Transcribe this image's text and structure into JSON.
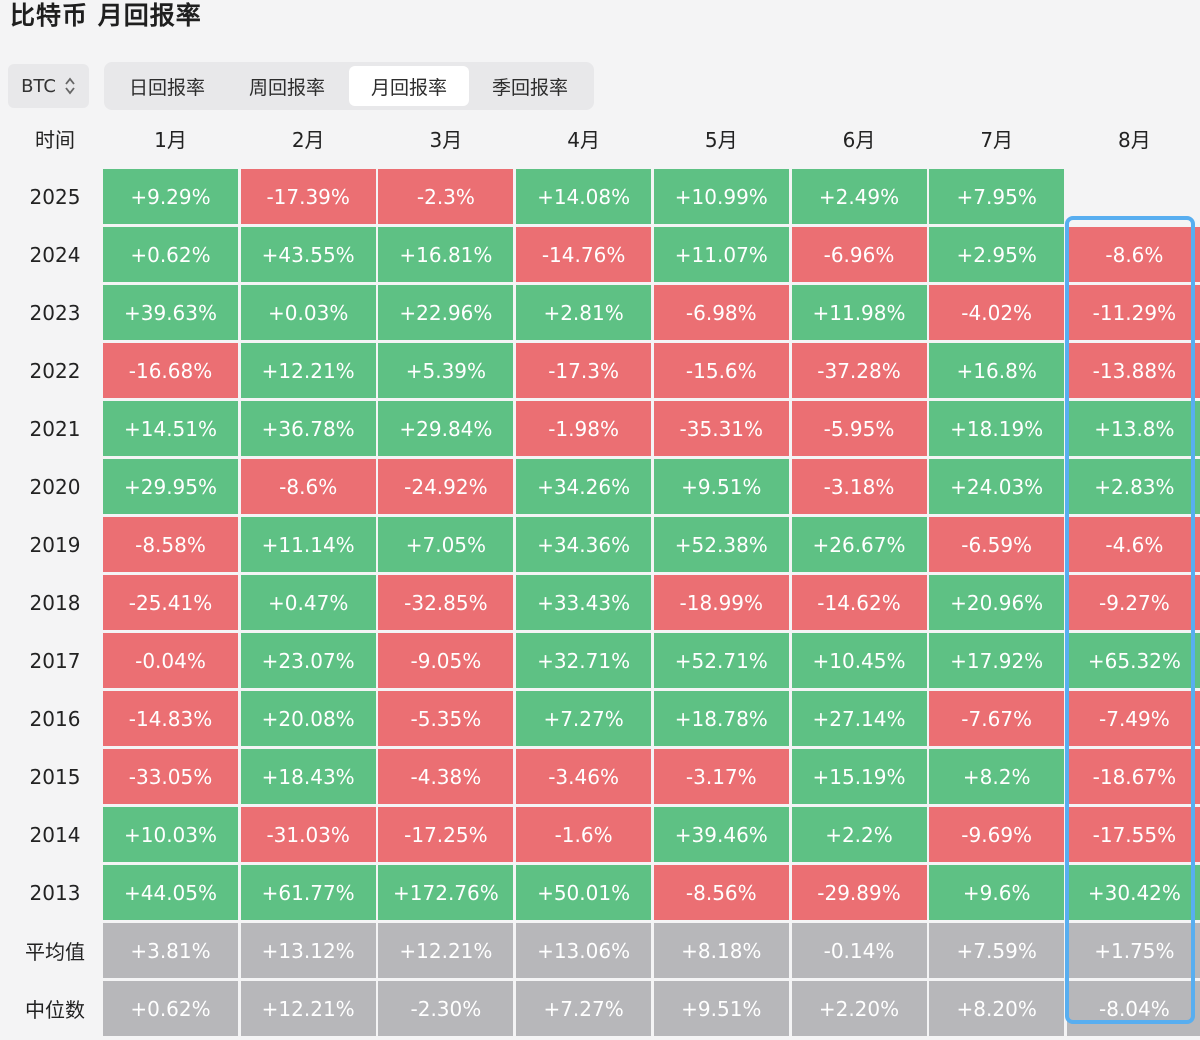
{
  "title": "比特币 月回报率",
  "asset_select": {
    "value": "BTC",
    "icon": "updown-arrows-icon"
  },
  "tabs": [
    {
      "label": "日回报率",
      "active": false
    },
    {
      "label": "周回报率",
      "active": false
    },
    {
      "label": "月回报率",
      "active": true
    },
    {
      "label": "季回报率",
      "active": false
    }
  ],
  "colors": {
    "positive": "#5ec184",
    "negative": "#eb6f73",
    "summary": "#b7b7ba",
    "highlight": "#58aef0"
  },
  "chart_data": {
    "type": "heatmap",
    "row_header": "时间",
    "columns": [
      "1月",
      "2月",
      "3月",
      "4月",
      "5月",
      "6月",
      "7月",
      "8月"
    ],
    "rows": [
      {
        "label": "2025",
        "values": [
          "+9.29%",
          "-17.39%",
          "-2.3%",
          "+14.08%",
          "+10.99%",
          "+2.49%",
          "+7.95%",
          ""
        ]
      },
      {
        "label": "2024",
        "values": [
          "+0.62%",
          "+43.55%",
          "+16.81%",
          "-14.76%",
          "+11.07%",
          "-6.96%",
          "+2.95%",
          "-8.6%"
        ]
      },
      {
        "label": "2023",
        "values": [
          "+39.63%",
          "+0.03%",
          "+22.96%",
          "+2.81%",
          "-6.98%",
          "+11.98%",
          "-4.02%",
          "-11.29%"
        ]
      },
      {
        "label": "2022",
        "values": [
          "-16.68%",
          "+12.21%",
          "+5.39%",
          "-17.3%",
          "-15.6%",
          "-37.28%",
          "+16.8%",
          "-13.88%"
        ]
      },
      {
        "label": "2021",
        "values": [
          "+14.51%",
          "+36.78%",
          "+29.84%",
          "-1.98%",
          "-35.31%",
          "-5.95%",
          "+18.19%",
          "+13.8%"
        ]
      },
      {
        "label": "2020",
        "values": [
          "+29.95%",
          "-8.6%",
          "-24.92%",
          "+34.26%",
          "+9.51%",
          "-3.18%",
          "+24.03%",
          "+2.83%"
        ]
      },
      {
        "label": "2019",
        "values": [
          "-8.58%",
          "+11.14%",
          "+7.05%",
          "+34.36%",
          "+52.38%",
          "+26.67%",
          "-6.59%",
          "-4.6%"
        ]
      },
      {
        "label": "2018",
        "values": [
          "-25.41%",
          "+0.47%",
          "-32.85%",
          "+33.43%",
          "-18.99%",
          "-14.62%",
          "+20.96%",
          "-9.27%"
        ]
      },
      {
        "label": "2017",
        "values": [
          "-0.04%",
          "+23.07%",
          "-9.05%",
          "+32.71%",
          "+52.71%",
          "+10.45%",
          "+17.92%",
          "+65.32%"
        ]
      },
      {
        "label": "2016",
        "values": [
          "-14.83%",
          "+20.08%",
          "-5.35%",
          "+7.27%",
          "+18.78%",
          "+27.14%",
          "-7.67%",
          "-7.49%"
        ]
      },
      {
        "label": "2015",
        "values": [
          "-33.05%",
          "+18.43%",
          "-4.38%",
          "-3.46%",
          "-3.17%",
          "+15.19%",
          "+8.2%",
          "-18.67%"
        ]
      },
      {
        "label": "2014",
        "values": [
          "+10.03%",
          "-31.03%",
          "-17.25%",
          "-1.6%",
          "+39.46%",
          "+2.2%",
          "-9.69%",
          "-17.55%"
        ]
      },
      {
        "label": "2013",
        "values": [
          "+44.05%",
          "+61.77%",
          "+172.76%",
          "+50.01%",
          "-8.56%",
          "-29.89%",
          "+9.6%",
          "+30.42%"
        ]
      }
    ],
    "summary_rows": [
      {
        "label": "平均值",
        "values": [
          "+3.81%",
          "+13.12%",
          "+12.21%",
          "+13.06%",
          "+8.18%",
          "-0.14%",
          "+7.59%",
          "+1.75%"
        ]
      },
      {
        "label": "中位数",
        "values": [
          "+0.62%",
          "+12.21%",
          "-2.30%",
          "+7.27%",
          "+9.51%",
          "+2.20%",
          "+8.20%",
          "-8.04%"
        ]
      }
    ],
    "highlighted_column": "8月"
  }
}
